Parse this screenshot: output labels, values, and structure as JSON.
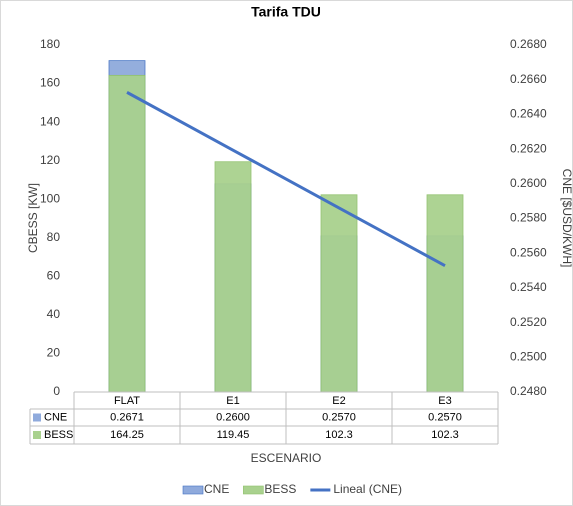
{
  "chart_data": {
    "type": "bar",
    "title": "Tarifa TDU",
    "xlabel": "ESCENARIO",
    "ylabel": "CBESS [KW]",
    "y2label": "CNE [$USD/KWH]",
    "categories": [
      "FLAT",
      "E1",
      "E2",
      "E3"
    ],
    "series": [
      {
        "name": "CNE",
        "color": "#8faadc",
        "axis": "y2",
        "values": [
          0.2671,
          0.26,
          0.257,
          0.257
        ],
        "value_labels": [
          "0.2671",
          "0.2600",
          "0.2570",
          "0.2570"
        ]
      },
      {
        "name": "BESS",
        "color": "#a9d18e",
        "values": [
          164.25,
          119.45,
          102.3,
          102.3
        ]
      }
    ],
    "trendline": {
      "name": "Lineal (CNE)",
      "color": "#4472c4"
    },
    "ylim": [
      0,
      180
    ],
    "yticks": [
      0,
      20,
      40,
      60,
      80,
      100,
      120,
      140,
      160,
      180
    ],
    "y2lim": [
      0.248,
      0.268
    ],
    "y2ticks": [
      {
        "value": 0.248,
        "label": "0.2480"
      },
      {
        "value": 0.25,
        "label": "0.2500"
      },
      {
        "value": 0.252,
        "label": "0.2520"
      },
      {
        "value": 0.254,
        "label": "0.2540"
      },
      {
        "value": 0.256,
        "label": "0.2560"
      },
      {
        "value": 0.258,
        "label": "0.2580"
      },
      {
        "value": 0.26,
        "label": "0.2600"
      },
      {
        "value": 0.262,
        "label": "0.2620"
      },
      {
        "value": 0.264,
        "label": "0.2640"
      },
      {
        "value": 0.266,
        "label": "0.2660"
      },
      {
        "value": 0.268,
        "label": "0.2680"
      }
    ],
    "legend": "bottom"
  }
}
